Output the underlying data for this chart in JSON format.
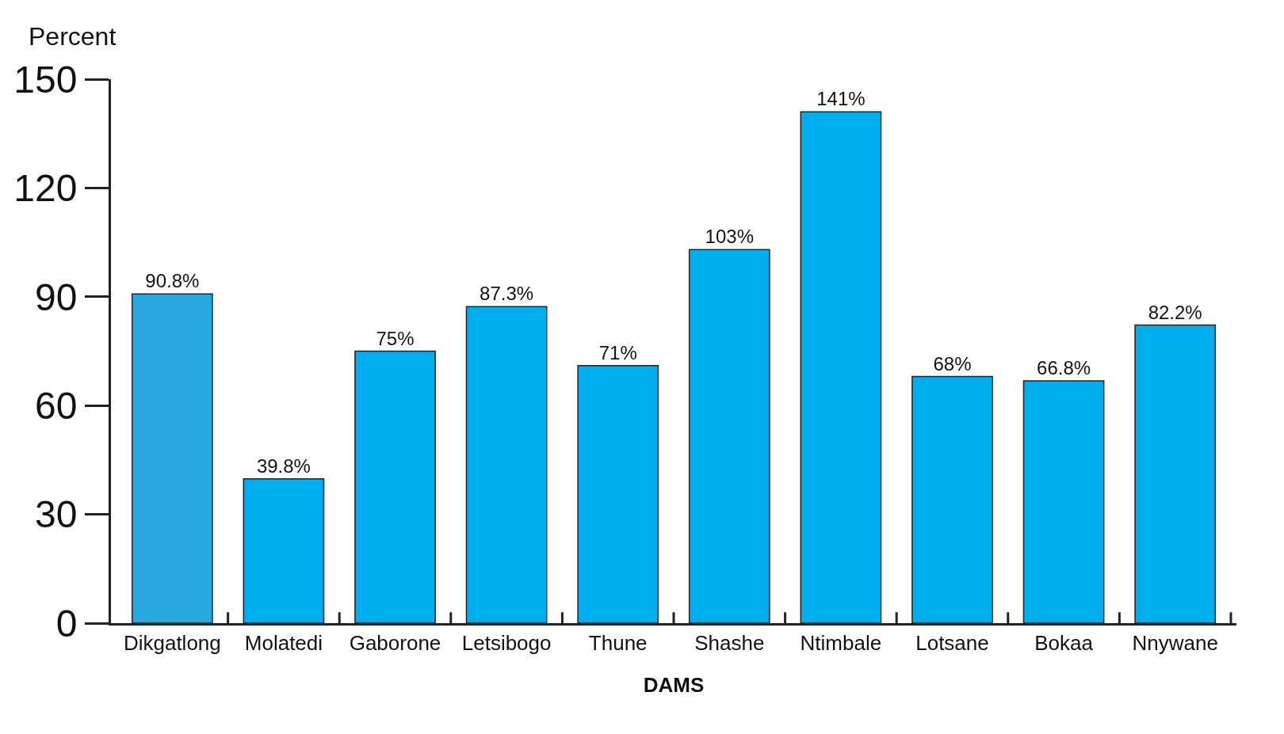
{
  "chart_data": {
    "type": "bar",
    "ylabel": "Percent",
    "xlabel": "DAMS",
    "categories": [
      "Dikgatlong",
      "Molatedi",
      "Gaborone",
      "Letsibogo",
      "Thune",
      "Shashe",
      "Ntimbale",
      "Lotsane",
      "Bokaa",
      "Nnywane"
    ],
    "values": [
      90.8,
      39.8,
      75,
      87.3,
      71,
      103,
      141,
      68,
      66.8,
      82.2
    ],
    "value_labels": [
      "90.8%",
      "39.8%",
      "75%",
      "87.3%",
      "71%",
      "103%",
      "141%",
      "68%",
      "66.8%",
      "82.2%"
    ],
    "colors": [
      "#29a8e0",
      "#00aeef",
      "#00aeef",
      "#00aeef",
      "#00aeef",
      "#00aeef",
      "#00aeef",
      "#00aeef",
      "#00aeef",
      "#00aeef"
    ],
    "ylim": [
      0,
      150
    ],
    "yticks": [
      0,
      30,
      60,
      90,
      120,
      150
    ]
  }
}
